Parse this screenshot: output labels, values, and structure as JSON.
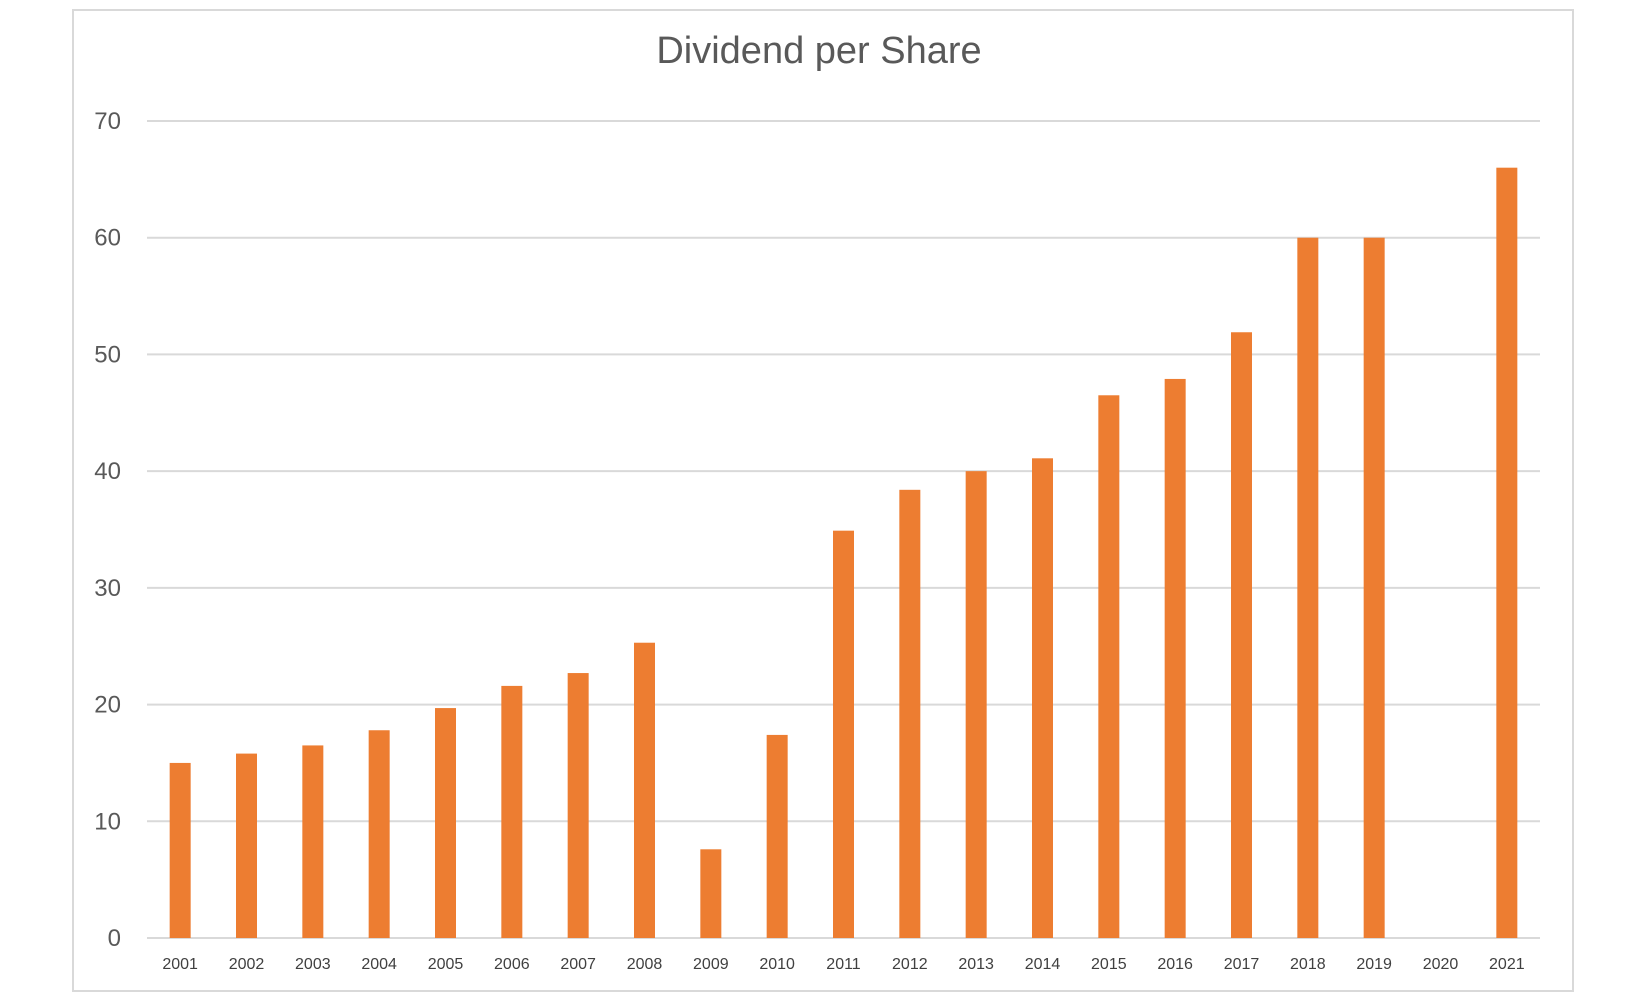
{
  "chart_data": {
    "type": "bar",
    "title": "Dividend per Share",
    "xlabel": "",
    "ylabel": "",
    "categories": [
      "2001",
      "2002",
      "2003",
      "2004",
      "2005",
      "2006",
      "2007",
      "2008",
      "2009",
      "2010",
      "2011",
      "2012",
      "2013",
      "2014",
      "2015",
      "2016",
      "2017",
      "2018",
      "2019",
      "2020",
      "2021"
    ],
    "values": [
      15,
      15.8,
      16.5,
      17.8,
      19.7,
      21.6,
      22.7,
      25.3,
      7.6,
      17.4,
      34.9,
      38.4,
      40,
      41.1,
      46.5,
      47.9,
      51.9,
      60,
      60,
      0,
      66
    ],
    "ylim": [
      0,
      70
    ],
    "yticks": [
      0,
      10,
      20,
      30,
      40,
      50,
      60,
      70
    ],
    "grid": true,
    "legend": "none",
    "bar_color": "#ED7D31",
    "grid_color": "#d9d9d9"
  }
}
